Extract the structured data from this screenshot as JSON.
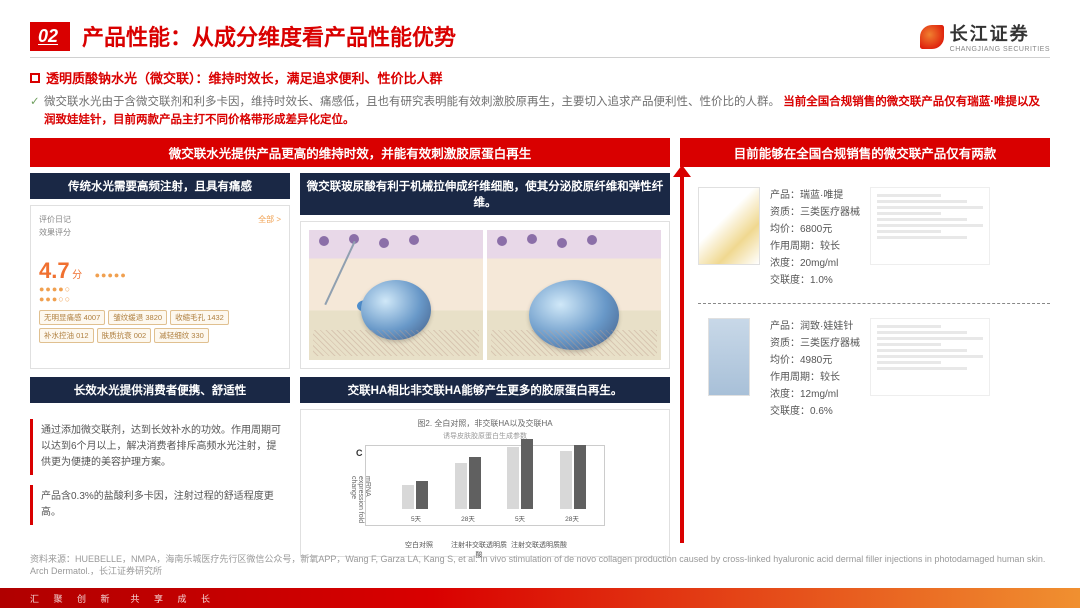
{
  "section_number": "02",
  "title": "产品性能：从成分维度看产品性能优势",
  "logo": {
    "cn": "长江证券",
    "en": "CHANGJIANG SECURITIES"
  },
  "subtitle": "透明质酸钠水光（微交联）：维持时效长，满足追求便利、性价比人群",
  "body_text_1": "微交联水光由于含微交联剂和利多卡因，维持时效长、痛感低，且也有研究表明能有效刺激胶原再生，主要切入追求产品便利性、性价比的人群。",
  "body_text_emph": "当前全国合规销售的微交联产品仅有瑞蓝·唯提以及润致娃娃针，目前两款产品主打不同价格带形成差异化定位。",
  "left_header": "微交联水光提供产品更高的维持时效，并能有效刺激胶原蛋白再生",
  "right_header": "目前能够在全国合规销售的微交联产品仅有两款",
  "card_a_title": "传统水光需要高频注射，且具有痛感",
  "card_b_title": "微交联玻尿酸有利于机械拉伸成纤维细胞，使其分泌胶原纤维和弹性纤维。",
  "card_c_title": "长效水光提供消费者便携、舒适性",
  "card_d_title": "交联HA相比非交联HA能够产生更多的胶原蛋白再生。",
  "review": {
    "label1": "评价日记",
    "label2": "效果评分",
    "rating": "4.7",
    "rating_suffix": "分",
    "more": "全部 >",
    "tags": [
      "无明显痛感 4007",
      "皱纹缓退 3820",
      "收缩毛孔 1432",
      "补水控油 012",
      "肤质抗衰 002",
      "减轻细纹 330"
    ]
  },
  "bullets": {
    "b1": "通过添加微交联剂，达到长效补水的功效。作用周期可以达到6个月以上，解决消费者排斥高频水光注射，提供更为便捷的美容护理方案。",
    "b2": "产品含0.3%的盐酸利多卡因，注射过程的舒适程度更高。"
  },
  "chart": {
    "fig_title": "图2. 全白对照，非交联HA以及交联HA",
    "fig_sub": "诱导皮肤胶原蛋白生成参数",
    "y_label": "mRNA expression fold change",
    "c_label": "C",
    "groups": [
      {
        "light": 24,
        "dark": 28
      },
      {
        "light": 46,
        "dark": 52
      },
      {
        "light": 62,
        "dark": 70
      },
      {
        "light": 58,
        "dark": 64
      }
    ],
    "x_inner": [
      "5天",
      "28天",
      "5天",
      "28天"
    ],
    "x_outer": [
      "空白对照",
      "注射非交联透明质酸",
      "注射交联透明质酸",
      ""
    ],
    "bar_light_color": "#d8d8d8",
    "bar_dark_color": "#606060"
  },
  "products": [
    {
      "name": "瑞蓝·唯提",
      "qual": "三类医疗器械",
      "price": "6800元",
      "period": "较长",
      "conc": "20mg/ml",
      "link": "1.0%",
      "img_class": "gold"
    },
    {
      "name": "润致·娃娃针",
      "qual": "三类医疗器械",
      "price": "4980元",
      "period": "较长",
      "conc": "12mg/ml",
      "link": "0.6%",
      "img_class": "blue"
    }
  ],
  "product_labels": {
    "name": "产品：",
    "qual": "资质：",
    "price": "均价：",
    "period": "作用周期：",
    "conc": "浓度：",
    "link": "交联度："
  },
  "source": "资料来源：HUEBELLE，NMPA，海南乐城医疗先行区微信公众号，新氧APP，Wang F, Garza LA, Kang S, et al. In vivo stimulation of de novo collagen production caused by cross-linked hyaluronic acid dermal filler injections in photodamaged human skin. Arch Dermatol.，长江证券研究所",
  "footer": "汇 聚 创 新　共 享 成 长"
}
